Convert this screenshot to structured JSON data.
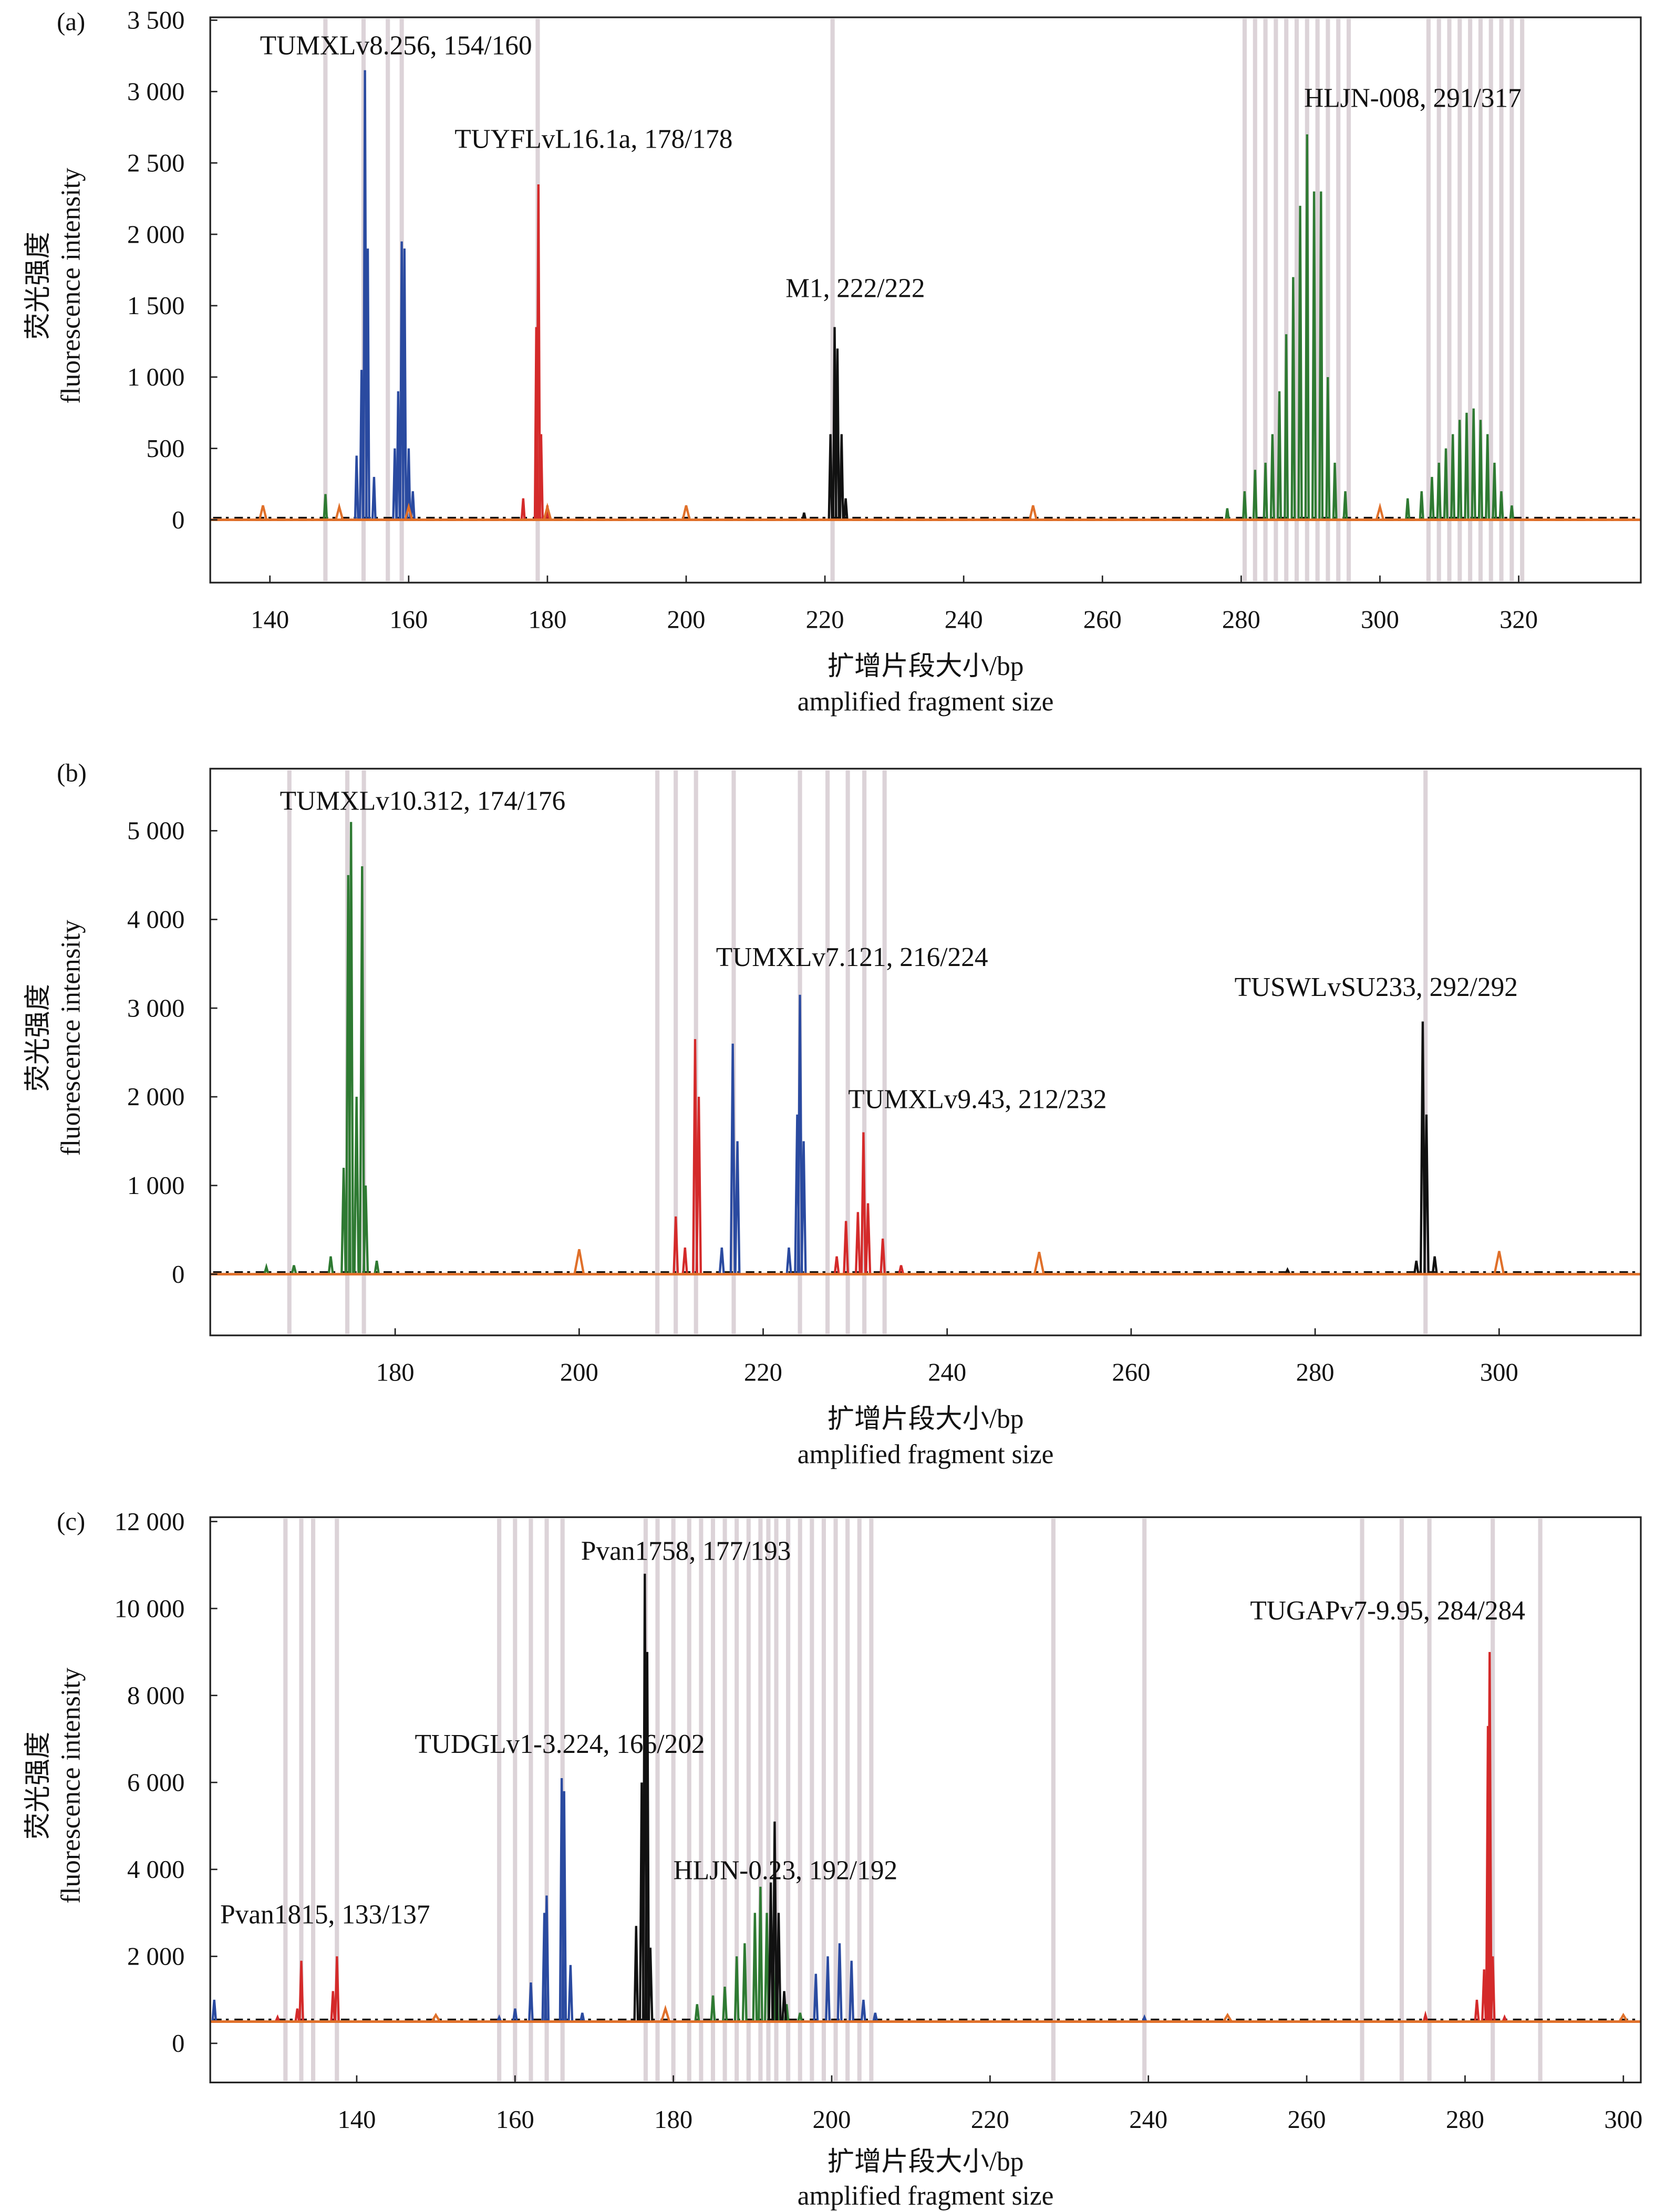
{
  "colors": {
    "blue": "#2a4aa0",
    "red": "#d42a2a",
    "green": "#2e7a32",
    "black": "#111111",
    "orange": "#e0702a",
    "bin": "#dcd3d8"
  },
  "chart_data": [
    {
      "type": "line",
      "panel_label": "(a)",
      "xlabel_cn": "扩增片段大小/bp",
      "xlabel_en": "amplified fragment size",
      "ylabel_cn": "荧光强度",
      "ylabel_en": "fluorescence intensity",
      "xlim": [
        131.4,
        337.6
      ],
      "ylim": [
        -440,
        3520
      ],
      "baseline": 0,
      "xticks": [
        140,
        160,
        180,
        200,
        220,
        240,
        260,
        280,
        300,
        320
      ],
      "xtick_labels": [
        "140",
        "160",
        "180",
        "200",
        "220",
        "240",
        "260",
        "280",
        "300",
        "320"
      ],
      "yticks": [
        0,
        500,
        1000,
        1500,
        2000,
        2500,
        3000,
        3500
      ],
      "ytick_labels": [
        "0",
        "500",
        "1 000",
        "1 500",
        "2 000",
        "2 500",
        "3 000",
        "3 500"
      ],
      "bins": [
        148,
        153.5,
        157,
        159,
        178.6,
        221.1,
        280.5,
        282,
        283.5,
        285,
        286.5,
        288,
        289.5,
        291,
        292.5,
        294,
        295.5,
        307,
        308.5,
        310,
        311.5,
        313,
        314.5,
        316,
        317.5,
        319,
        320.5
      ],
      "annotations": [
        "TUMXLv8.256, 154/160",
        "TUYFLvL16.1a, 178/178",
        "M1, 222/222",
        "HLJN-008, 291/317"
      ],
      "peaks": {
        "blue": [
          [
            152.5,
            450
          ],
          [
            153.2,
            1050
          ],
          [
            153.7,
            3150
          ],
          [
            154.1,
            1900
          ],
          [
            155,
            300
          ],
          [
            158,
            500
          ],
          [
            158.5,
            900
          ],
          [
            159,
            1950
          ],
          [
            159.4,
            1900
          ],
          [
            160,
            500
          ],
          [
            160.6,
            200
          ]
        ],
        "red": [
          [
            176.5,
            150
          ],
          [
            178.4,
            1350
          ],
          [
            178.7,
            2350
          ],
          [
            179.1,
            600
          ],
          [
            180,
            100
          ]
        ],
        "black": [
          [
            217,
            50
          ],
          [
            220.8,
            600
          ],
          [
            221.4,
            1350
          ],
          [
            221.8,
            1200
          ],
          [
            222.4,
            600
          ],
          [
            223,
            150
          ]
        ],
        "green": [
          [
            148,
            180
          ],
          [
            278,
            80
          ],
          [
            280.5,
            200
          ],
          [
            282,
            350
          ],
          [
            283.5,
            400
          ],
          [
            284.5,
            600
          ],
          [
            285.5,
            900
          ],
          [
            286.5,
            1300
          ],
          [
            287.5,
            1700
          ],
          [
            288.5,
            2200
          ],
          [
            289.5,
            2700
          ],
          [
            290.5,
            2300
          ],
          [
            291.5,
            2300
          ],
          [
            292.5,
            1000
          ],
          [
            293.5,
            400
          ],
          [
            295,
            200
          ],
          [
            304,
            150
          ],
          [
            306,
            200
          ],
          [
            307.5,
            300
          ],
          [
            308.5,
            400
          ],
          [
            309.5,
            500
          ],
          [
            310.5,
            600
          ],
          [
            311.5,
            700
          ],
          [
            312.5,
            750
          ],
          [
            313.5,
            780
          ],
          [
            314.5,
            700
          ],
          [
            315.5,
            600
          ],
          [
            316.5,
            400
          ],
          [
            317.5,
            200
          ],
          [
            319,
            100
          ]
        ],
        "orange": [
          [
            139,
            100
          ],
          [
            150,
            90
          ],
          [
            160,
            90
          ],
          [
            180,
            90
          ],
          [
            200,
            100
          ],
          [
            250,
            100
          ],
          [
            300,
            90
          ]
        ]
      }
    },
    {
      "type": "line",
      "panel_label": "(b)",
      "xlabel_cn": "扩增片段大小/bp",
      "xlabel_en": "amplified fragment size",
      "ylabel_cn": "荧光强度",
      "ylabel_en": "fluorescence intensity",
      "xlim": [
        159.9,
        315.4
      ],
      "ylim": [
        -690,
        5700
      ],
      "baseline": 0,
      "xticks": [
        180,
        200,
        220,
        240,
        260,
        280,
        300
      ],
      "xtick_labels": [
        "180",
        "200",
        "220",
        "240",
        "260",
        "280",
        "300"
      ],
      "yticks": [
        0,
        1000,
        2000,
        3000,
        4000,
        5000
      ],
      "ytick_labels": [
        "0",
        "1 000",
        "2 000",
        "3 000",
        "4 000",
        "5 000"
      ],
      "bins": [
        168.5,
        174.8,
        176.6,
        208.5,
        210.5,
        212.7,
        216.8,
        224,
        227,
        229.2,
        231,
        233.2,
        292
      ],
      "annotations": [
        "TUMXLv10.312, 174/176",
        "TUMXLv7.121, 216/224",
        "TUMXLv9.43, 212/232",
        "TUSWLvSU233, 292/292"
      ],
      "peaks": {
        "green": [
          [
            166,
            80
          ],
          [
            169,
            100
          ],
          [
            173,
            200
          ],
          [
            174.4,
            1200
          ],
          [
            174.9,
            4500
          ],
          [
            175.2,
            5100
          ],
          [
            175.8,
            2000
          ],
          [
            176.4,
            4600
          ],
          [
            176.8,
            1000
          ],
          [
            178,
            150
          ]
        ],
        "red": [
          [
            210.5,
            650
          ],
          [
            211.5,
            300
          ],
          [
            212.6,
            2650
          ],
          [
            213,
            2000
          ],
          [
            228,
            200
          ],
          [
            229,
            600
          ],
          [
            230.3,
            700
          ],
          [
            230.9,
            1600
          ],
          [
            231.4,
            800
          ],
          [
            233,
            400
          ],
          [
            235,
            100
          ]
        ],
        "blue": [
          [
            215.5,
            300
          ],
          [
            216.7,
            2600
          ],
          [
            217.2,
            1500
          ],
          [
            222.8,
            300
          ],
          [
            223.7,
            1800
          ],
          [
            224,
            3150
          ],
          [
            224.4,
            1500
          ]
        ],
        "black": [
          [
            277,
            50
          ],
          [
            291,
            150
          ],
          [
            291.7,
            2850
          ],
          [
            292.1,
            1800
          ],
          [
            293,
            200
          ]
        ],
        "orange": [
          [
            200,
            280
          ],
          [
            250,
            250
          ],
          [
            300,
            260
          ]
        ]
      }
    },
    {
      "type": "line",
      "panel_label": "(c)",
      "xlabel_cn": "扩增片段大小/bp",
      "xlabel_en": "amplified fragment size",
      "ylabel_cn": "荧光强度",
      "ylabel_en": "fluorescence intensity",
      "xlim": [
        121.5,
        302.2
      ],
      "ylim": [
        -900,
        12100
      ],
      "baseline": 500,
      "xticks": [
        140,
        160,
        180,
        200,
        220,
        240,
        260,
        280,
        300
      ],
      "xtick_labels": [
        "140",
        "160",
        "180",
        "200",
        "220",
        "240",
        "260",
        "280",
        "300"
      ],
      "yticks": [
        0,
        2000,
        4000,
        6000,
        8000,
        10000,
        12000
      ],
      "ytick_labels": [
        "0",
        "2 000",
        "4 000",
        "6 000",
        "8 000",
        "10 000",
        "12 000"
      ],
      "bins": [
        131,
        133,
        134.5,
        137.5,
        158,
        160,
        162,
        164,
        166,
        176.5,
        178,
        180,
        182,
        183.5,
        185,
        186.5,
        188,
        189.5,
        191,
        192,
        193,
        194.5,
        196,
        197.5,
        199,
        200.5,
        202,
        203.5,
        205,
        228,
        239.5,
        267,
        272,
        275.5,
        283.5,
        289.5
      ],
      "annotations": [
        "Pvan1815, 133/137",
        "TUDGLv1-3.224, 166/202",
        "Pvan1758, 177/193",
        "HLJN-0.23, 192/192",
        "TUGAPv7-9.95, 284/284"
      ],
      "peaks": {
        "red": [
          [
            130,
            600
          ],
          [
            132.5,
            800
          ],
          [
            133,
            1900
          ],
          [
            137,
            1200
          ],
          [
            137.5,
            2000
          ],
          [
            275,
            650
          ],
          [
            281.5,
            1000
          ],
          [
            282.4,
            1700
          ],
          [
            282.9,
            7300
          ],
          [
            283.1,
            9000
          ],
          [
            283.5,
            2000
          ],
          [
            285,
            600
          ]
        ],
        "blue": [
          [
            122,
            1000
          ],
          [
            158,
            600
          ],
          [
            160,
            800
          ],
          [
            162,
            1400
          ],
          [
            163.7,
            3000
          ],
          [
            164,
            3400
          ],
          [
            165.9,
            6100
          ],
          [
            166.2,
            5800
          ],
          [
            167,
            1800
          ],
          [
            168.5,
            700
          ],
          [
            198,
            1600
          ],
          [
            199.5,
            2000
          ],
          [
            201,
            2300
          ],
          [
            202.5,
            1900
          ],
          [
            204,
            1000
          ],
          [
            205.5,
            700
          ],
          [
            239.5,
            600
          ]
        ],
        "black": [
          [
            175.3,
            2700
          ],
          [
            176,
            6000
          ],
          [
            176.4,
            10800
          ],
          [
            176.7,
            9000
          ],
          [
            177.1,
            2200
          ],
          [
            192.3,
            3700
          ],
          [
            192.8,
            5100
          ],
          [
            193.3,
            3000
          ],
          [
            194,
            1200
          ]
        ],
        "green": [
          [
            183,
            900
          ],
          [
            185,
            1100
          ],
          [
            186.5,
            1300
          ],
          [
            188,
            2000
          ],
          [
            189,
            2300
          ],
          [
            190.3,
            3000
          ],
          [
            191,
            3600
          ],
          [
            191.8,
            3000
          ],
          [
            193,
            2000
          ],
          [
            194.3,
            900
          ],
          [
            196,
            700
          ]
        ],
        "orange": [
          [
            150,
            650
          ],
          [
            179,
            800
          ],
          [
            250,
            650
          ],
          [
            300,
            650
          ]
        ]
      }
    }
  ]
}
